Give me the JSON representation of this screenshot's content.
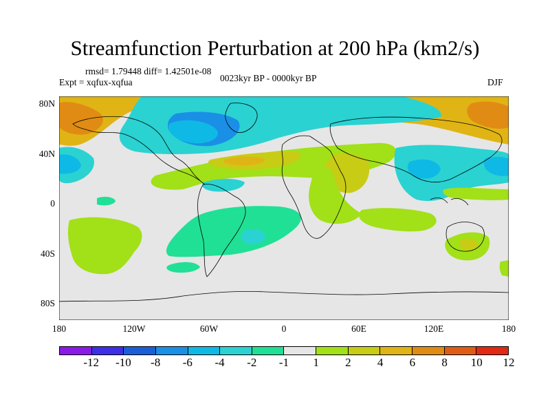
{
  "title": "Streamfunction Perturbation at 200 hPa (km2/s)",
  "stats": "rmsd= 1.79448 diff= 1.42501e-08",
  "expt": "Expt = xqfux-xqfua",
  "period": "0023kyr BP - 0000kyr BP",
  "season": "DJF",
  "map": {
    "lat_range": [
      -90,
      90
    ],
    "lon_range": [
      -180,
      180
    ],
    "lat_ticks": [
      "80N",
      "40N",
      "0",
      "40S",
      "80S"
    ],
    "lon_ticks": [
      "180",
      "120W",
      "60W",
      "0",
      "60E",
      "120E",
      "180"
    ]
  },
  "colorbar": {
    "colors": [
      "#8a1ae6",
      "#3c2fe6",
      "#1a5fd6",
      "#1a8fe6",
      "#0fb9e6",
      "#2ad2d2",
      "#20e096",
      "#e6e6e6",
      "#a2e018",
      "#c8cc14",
      "#e0b414",
      "#e08c14",
      "#e05c14",
      "#e02a14"
    ],
    "labels": [
      "-12",
      "-10",
      "-8",
      "-6",
      "-4",
      "-2",
      "-1",
      "1",
      "2",
      "4",
      "6",
      "8",
      "10",
      "12"
    ]
  }
}
